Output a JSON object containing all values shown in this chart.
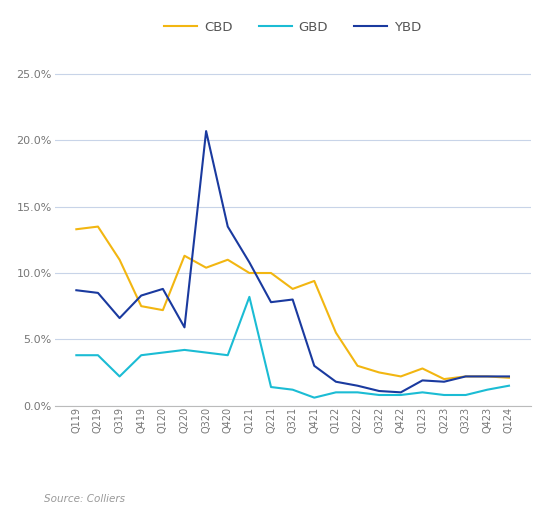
{
  "categories": [
    "Q119",
    "Q219",
    "Q319",
    "Q419",
    "Q120",
    "Q220",
    "Q320",
    "Q420",
    "Q121",
    "Q221",
    "Q321",
    "Q421",
    "Q122",
    "Q222",
    "Q322",
    "Q422",
    "Q123",
    "Q223",
    "Q323",
    "Q423",
    "Q124"
  ],
  "CBD": [
    0.133,
    0.135,
    0.11,
    0.075,
    0.072,
    0.113,
    0.104,
    0.11,
    0.1,
    0.1,
    0.088,
    0.094,
    0.055,
    0.03,
    0.025,
    0.022,
    0.028,
    0.02,
    0.022,
    0.022,
    0.021
  ],
  "GBD": [
    0.038,
    0.038,
    0.022,
    0.038,
    0.04,
    0.042,
    0.04,
    0.038,
    0.082,
    0.014,
    0.012,
    0.006,
    0.01,
    0.01,
    0.008,
    0.008,
    0.01,
    0.008,
    0.008,
    0.012,
    0.015
  ],
  "YBD": [
    0.087,
    0.085,
    0.066,
    0.083,
    0.088,
    0.059,
    0.207,
    0.135,
    0.108,
    0.078,
    0.08,
    0.03,
    0.018,
    0.015,
    0.011,
    0.01,
    0.019,
    0.018,
    0.022,
    0.022,
    0.022
  ],
  "CBD_color": "#f2b611",
  "GBD_color": "#1bbcd4",
  "YBD_color": "#1a3a9f",
  "background_color": "#ffffff",
  "grid_color": "#c8d4e8",
  "ylim": [
    0,
    0.26
  ],
  "yticks": [
    0.0,
    0.05,
    0.1,
    0.15,
    0.2,
    0.25
  ],
  "source_text": "Source: Colliers",
  "legend_labels": [
    "CBD",
    "GBD",
    "YBD"
  ]
}
